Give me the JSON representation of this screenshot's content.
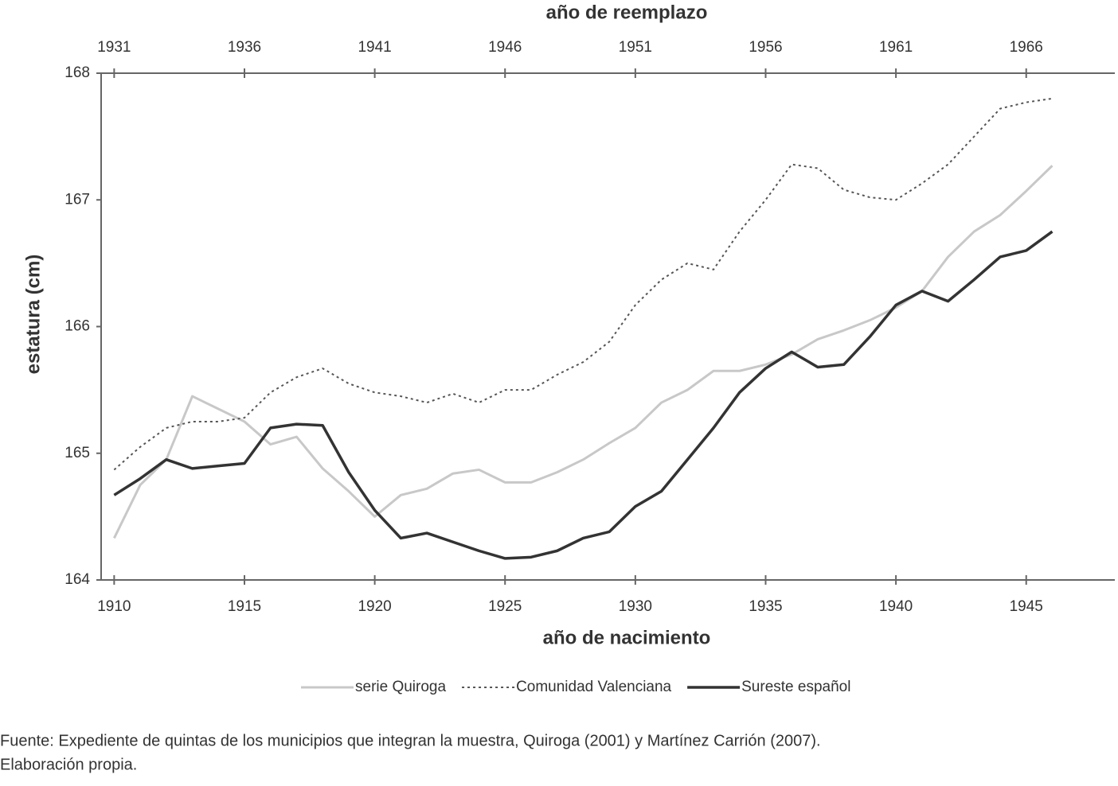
{
  "chart_data": {
    "type": "line",
    "xlabel": "año de nacimiento",
    "x2label": "año de reemplazo",
    "ylabel": "estatura (cm)",
    "x": [
      1910,
      1911,
      1912,
      1913,
      1914,
      1915,
      1916,
      1917,
      1918,
      1919,
      1920,
      1921,
      1922,
      1923,
      1924,
      1925,
      1926,
      1927,
      1928,
      1929,
      1930,
      1931,
      1932,
      1933,
      1934,
      1935,
      1936,
      1937,
      1938,
      1939,
      1940,
      1941,
      1942,
      1943,
      1944,
      1945,
      1946
    ],
    "series": [
      {
        "name": "serie Quiroga",
        "color": "#c8c8c8",
        "style": "solid",
        "width": 3,
        "values": [
          164.33,
          164.75,
          164.95,
          165.45,
          165.35,
          165.25,
          165.07,
          165.13,
          164.88,
          164.7,
          164.5,
          164.67,
          164.72,
          164.84,
          164.87,
          164.77,
          164.77,
          164.85,
          164.95,
          165.08,
          165.2,
          165.4,
          165.5,
          165.65,
          165.65,
          165.7,
          165.78,
          165.9,
          165.97,
          166.05,
          166.15,
          166.28,
          166.55,
          166.75,
          166.88,
          167.07,
          167.27
        ]
      },
      {
        "name": "Comunidad Valenciana",
        "color": "#555555",
        "style": "dotted",
        "width": 2,
        "values": [
          164.87,
          165.05,
          165.2,
          165.25,
          165.25,
          165.28,
          165.48,
          165.6,
          165.67,
          165.55,
          165.48,
          165.45,
          165.4,
          165.47,
          165.4,
          165.5,
          165.5,
          165.62,
          165.72,
          165.88,
          166.17,
          166.37,
          166.5,
          166.45,
          166.75,
          167.0,
          167.28,
          167.25,
          167.08,
          167.02,
          167.0,
          167.13,
          167.28,
          167.5,
          167.72,
          167.77,
          167.8
        ]
      },
      {
        "name": "Sureste español",
        "color": "#333333",
        "style": "solid",
        "width": 3.5,
        "values": [
          164.67,
          164.8,
          164.95,
          164.88,
          164.9,
          164.92,
          165.2,
          165.23,
          165.22,
          164.85,
          164.55,
          164.33,
          164.37,
          164.3,
          164.23,
          164.17,
          164.18,
          164.23,
          164.33,
          164.38,
          164.58,
          164.7,
          164.95,
          165.2,
          165.48,
          165.67,
          165.8,
          165.68,
          165.7,
          165.92,
          166.17,
          166.28,
          166.2,
          166.37,
          166.55,
          166.6,
          166.75
        ]
      }
    ],
    "xlim": [
      1909.5,
      1948.4
    ],
    "xticks": [
      1910,
      1915,
      1920,
      1925,
      1930,
      1935,
      1940,
      1945
    ],
    "x2lim": [
      1930.5,
      1969.4
    ],
    "x2ticks": [
      1931,
      1936,
      1941,
      1946,
      1951,
      1956,
      1961,
      1966
    ],
    "ylim": [
      164,
      168
    ],
    "yticks": [
      164,
      165,
      166,
      167,
      168
    ],
    "grid": false,
    "legend": "bottom",
    "source": [
      "Fuente: Expediente de quintas de los municipios que integran la muestra, Quiroga (2001) y Martínez Carrión (2007).",
      "Elaboración propia."
    ]
  }
}
